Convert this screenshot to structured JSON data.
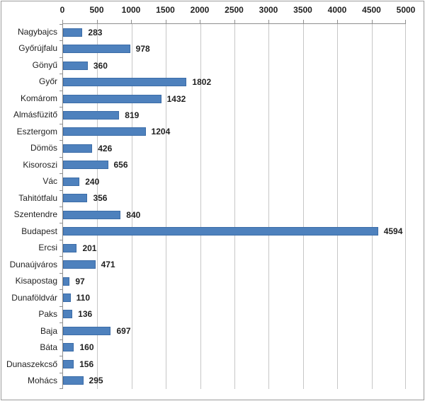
{
  "window": {
    "background": "#ffffff",
    "border_color": "#9c9c9c"
  },
  "chart_data": {
    "type": "bar",
    "orientation": "horizontal",
    "title": "",
    "xlabel": "",
    "ylabel": "",
    "categories": [
      "Nagybajcs",
      "Győrújfalu",
      "Gönyű",
      "Győr",
      "Komárom",
      "Almásfüzitő",
      "Esztergom",
      "Dömös",
      "Kisoroszi",
      "Vác",
      "Tahitótfalu",
      "Szentendre",
      "Budapest",
      "Ercsi",
      "Dunaújváros",
      "Kisapostag",
      "Dunaföldvár",
      "Paks",
      "Baja",
      "Báta",
      "Dunaszekcső",
      "Mohács"
    ],
    "values": [
      283,
      978,
      360,
      1802,
      1432,
      819,
      1204,
      426,
      656,
      240,
      356,
      840,
      4594,
      201,
      471,
      97,
      110,
      136,
      697,
      160,
      156,
      295
    ],
    "data_labels": [
      "283",
      "978",
      "360",
      "1802",
      "1432",
      "819",
      "1204",
      "426",
      "656",
      "240",
      "356",
      "840",
      "4594",
      "201",
      "471",
      "97",
      "110",
      "136",
      "697",
      "160",
      "156",
      "295"
    ],
    "xlim": [
      0,
      5000
    ],
    "x_ticks": [
      0,
      500,
      1000,
      1500,
      2000,
      2500,
      3000,
      3500,
      4000,
      4500,
      5000
    ],
    "grid": true,
    "legend": "none",
    "value_axis_position": "top",
    "bar_color": "#4e81bd",
    "bar_border_color": "#3c6da8",
    "gridline_color": "#c6c6c6",
    "axis_line_color": "#8e8e8e",
    "text_color": "#1f1f1f"
  }
}
